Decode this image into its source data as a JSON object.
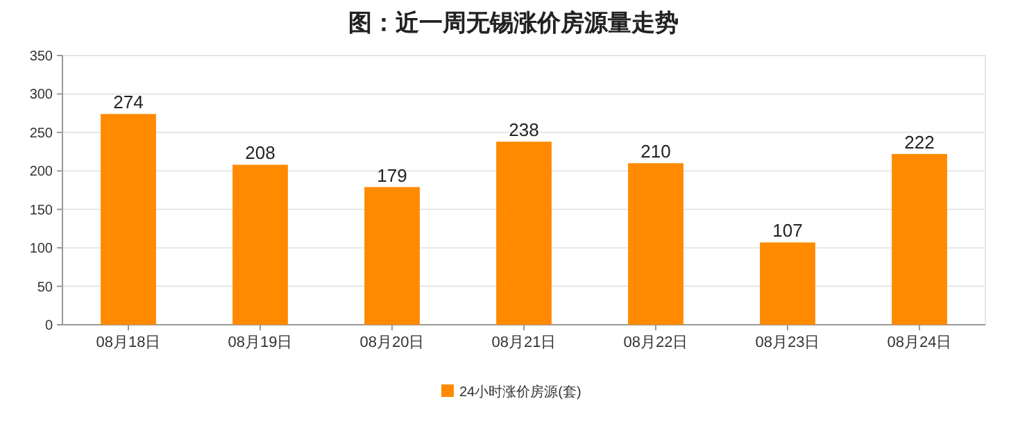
{
  "chart_data": {
    "type": "bar",
    "title": "图：近一周无锡涨价房源量走势",
    "categories": [
      "08月18日",
      "08月19日",
      "08月20日",
      "08月21日",
      "08月22日",
      "08月23日",
      "08月24日"
    ],
    "series": [
      {
        "name": "24小时涨价房源(套)",
        "color": "#ff8a00",
        "values": [
          274,
          208,
          179,
          238,
          210,
          107,
          222
        ]
      }
    ],
    "ylim": [
      0,
      350
    ],
    "yticks": [
      0,
      50,
      100,
      150,
      200,
      250,
      300,
      350
    ],
    "grid": "y",
    "legend": "bottom",
    "data_labels": true
  }
}
